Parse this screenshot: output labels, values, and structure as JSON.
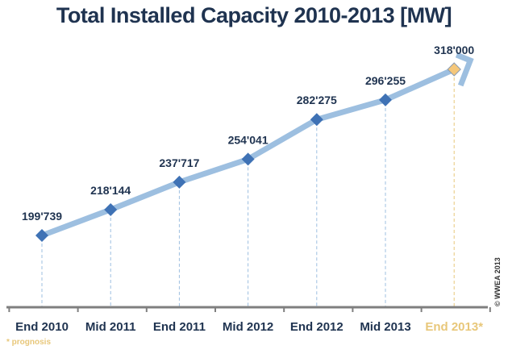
{
  "chart_data": {
    "type": "line",
    "title": "Total Installed Capacity 2010-2013 [MW]",
    "categories": [
      "End 2010",
      "Mid 2011",
      "End 2011",
      "Mid 2012",
      "End 2012",
      "Mid 2013",
      "End 2013*"
    ],
    "values": [
      199739,
      218144,
      237717,
      254041,
      282275,
      296255,
      318000
    ],
    "data_labels": [
      "199'739",
      "218'144",
      "237'717",
      "254'041",
      "282'275",
      "296'255",
      "318'000"
    ],
    "prognosis_index": 6,
    "footnote": "* prognosis",
    "credit": "© WWEA 2013",
    "grid": false,
    "legend": "none",
    "colors": {
      "line": "#9dbfe0",
      "marker": "#3f72b5",
      "prognosis_marker": "#f5c77a",
      "prognosis_text": "#e8c77a",
      "text": "#1f3350",
      "axis": "#7f7f7f"
    }
  }
}
